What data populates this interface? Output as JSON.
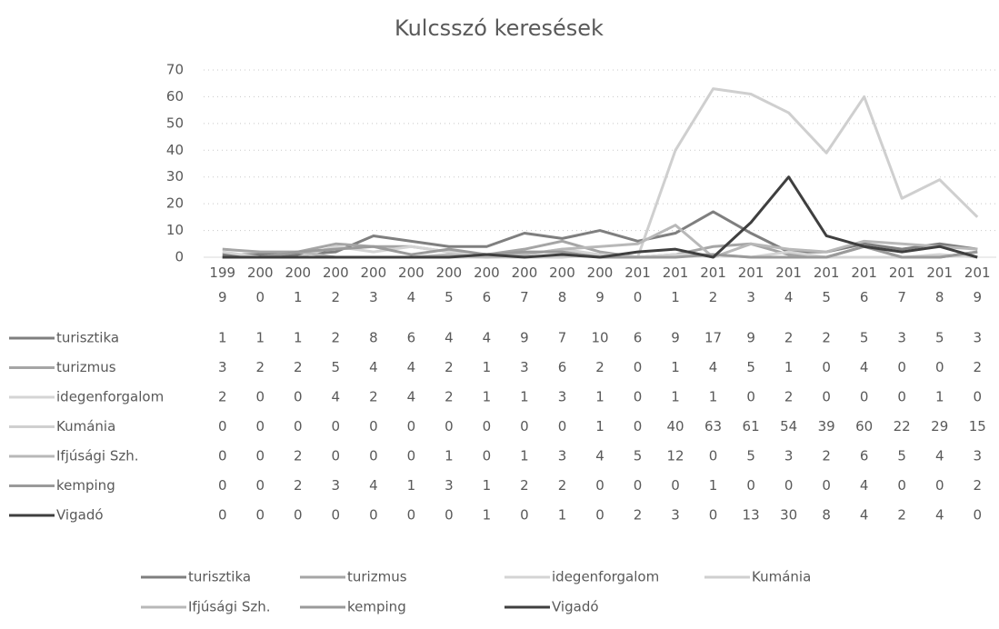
{
  "chart_data": {
    "type": "line",
    "title": "Kulcsszó keresések",
    "categories": [
      "1999",
      "2000",
      "2001",
      "2002",
      "2003",
      "2004",
      "2005",
      "2006",
      "2007",
      "2008",
      "2009",
      "2010",
      "2011",
      "2012",
      "2013",
      "2014",
      "2015",
      "2016",
      "2017",
      "2018",
      "2019"
    ],
    "series": [
      {
        "name": "turisztika",
        "color": "#7f7f7f",
        "values": [
          1,
          1,
          1,
          2,
          8,
          6,
          4,
          4,
          9,
          7,
          10,
          6,
          9,
          17,
          9,
          2,
          2,
          5,
          3,
          5,
          3
        ]
      },
      {
        "name": "turizmus",
        "color": "#a5a5a5",
        "values": [
          3,
          2,
          2,
          5,
          4,
          4,
          2,
          1,
          3,
          6,
          2,
          0,
          1,
          4,
          5,
          1,
          0,
          4,
          0,
          0,
          2
        ]
      },
      {
        "name": "idegenforgalom",
        "color": "#d4d4d4",
        "values": [
          2,
          0,
          0,
          4,
          2,
          4,
          2,
          1,
          1,
          3,
          1,
          0,
          1,
          1,
          0,
          2,
          0,
          0,
          0,
          1,
          0
        ]
      },
      {
        "name": "Kumánia",
        "color": "#cfcfcf",
        "values": [
          0,
          0,
          0,
          0,
          0,
          0,
          0,
          0,
          0,
          0,
          1,
          0,
          40,
          63,
          61,
          54,
          39,
          60,
          22,
          29,
          15
        ]
      },
      {
        "name": "Ifjúsági Szh.",
        "color": "#b8b8b8",
        "values": [
          0,
          0,
          2,
          0,
          0,
          0,
          1,
          0,
          1,
          3,
          4,
          5,
          12,
          0,
          5,
          3,
          2,
          6,
          5,
          4,
          3
        ]
      },
      {
        "name": "kemping",
        "color": "#9a9a9a",
        "values": [
          0,
          0,
          2,
          3,
          4,
          1,
          3,
          1,
          2,
          2,
          0,
          0,
          0,
          1,
          0,
          0,
          0,
          4,
          0,
          0,
          2
        ]
      },
      {
        "name": "Vigadó",
        "color": "#3f3f3f",
        "values": [
          0,
          0,
          0,
          0,
          0,
          0,
          0,
          1,
          0,
          1,
          0,
          2,
          3,
          0,
          13,
          30,
          8,
          4,
          2,
          4,
          0
        ]
      }
    ],
    "ylim": [
      0,
      70
    ],
    "yticks": [
      0,
      10,
      20,
      30,
      40,
      50,
      60,
      70
    ],
    "grid": true
  }
}
